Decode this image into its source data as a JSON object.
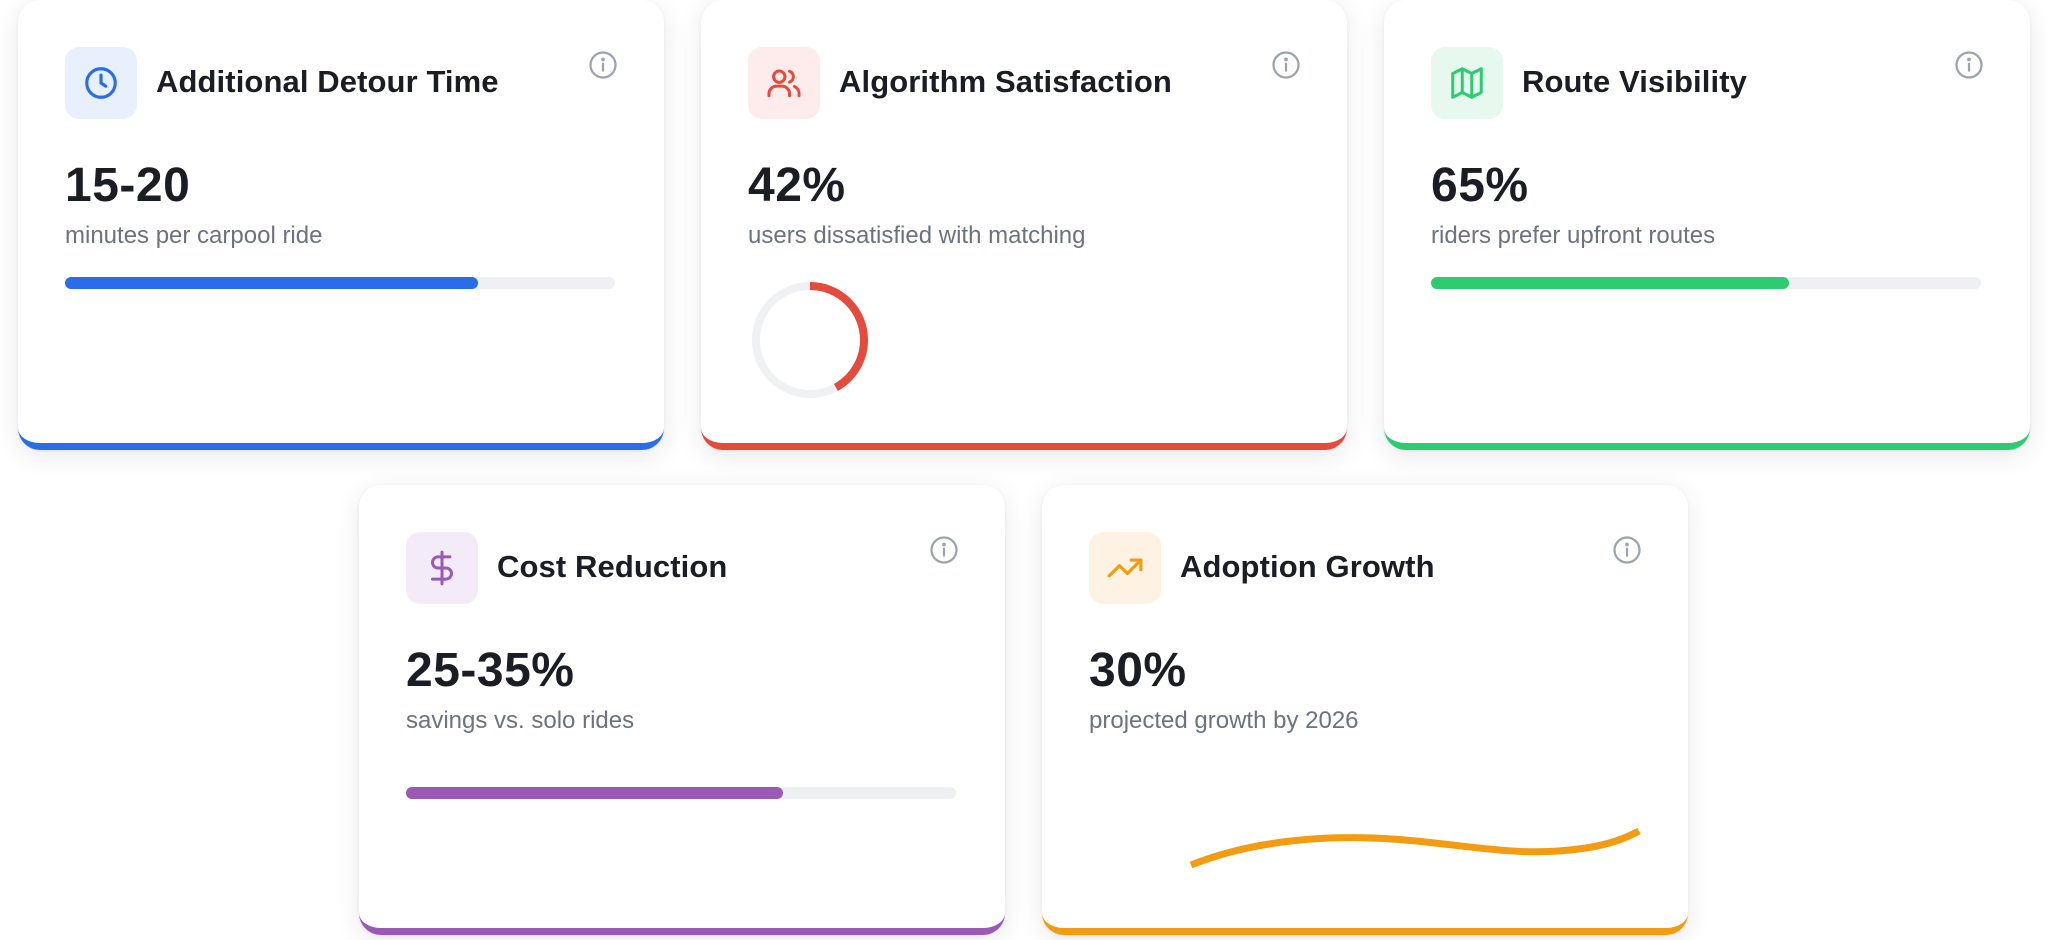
{
  "cards": [
    {
      "title": "Additional Detour Time",
      "value": "15-20",
      "description": "minutes per carpool ride",
      "icon": "clock-icon",
      "accent": "#2b6de8",
      "tint": "#e8f0fd",
      "viz": "bar",
      "progress": 0.75
    },
    {
      "title": "Algorithm Satisfaction",
      "value": "42%",
      "description": "users dissatisfied with matching",
      "icon": "users-icon",
      "accent": "#e54b3c",
      "tint": "#fdeceb",
      "viz": "donut",
      "progress": 0.42
    },
    {
      "title": "Route Visibility",
      "value": "65%",
      "description": "riders prefer upfront routes",
      "icon": "map-icon",
      "accent": "#2ecc71",
      "tint": "#e7f8ee",
      "viz": "bar",
      "progress": 0.65
    },
    {
      "title": "Cost Reduction",
      "value": "25-35%",
      "description": "savings vs. solo rides",
      "icon": "dollar-icon",
      "accent": "#9b59b6",
      "tint": "#f3ecf8",
      "viz": "bar",
      "progress": 0.685
    },
    {
      "title": "Adoption Growth",
      "value": "30%",
      "description": "projected growth by 2026",
      "icon": "trending-up-icon",
      "accent": "#f39c12",
      "tint": "#fef3e2",
      "viz": "wave",
      "progress": 0.3
    }
  ]
}
